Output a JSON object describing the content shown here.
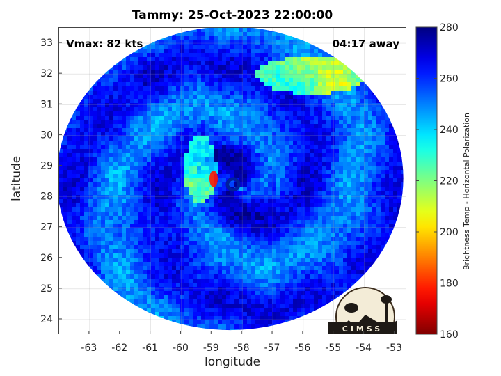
{
  "chart_data": {
    "type": "heatmap",
    "title": "Tammy: 25-Oct-2023 22:00:00",
    "xlabel": "longitude",
    "ylabel": "latitude",
    "xlim": [
      -64,
      -52.6
    ],
    "ylim": [
      23.5,
      33.5
    ],
    "xticks": [
      -63,
      -62,
      -61,
      -60,
      -59,
      -58,
      -57,
      -56,
      -55,
      -54,
      -53
    ],
    "yticks": [
      24,
      25,
      26,
      27,
      28,
      29,
      30,
      31,
      32,
      33
    ],
    "grid": true,
    "annotations": {
      "vmax": "Vmax: 82 kts",
      "away": "04:17 away"
    },
    "colorbar": {
      "label": "Brightness Temp - Horizontal Polarization",
      "range": [
        160,
        280
      ],
      "ticks": [
        160,
        180,
        200,
        220,
        240,
        260,
        280
      ],
      "colormap": "jet"
    },
    "storm_center": {
      "lon": -58.3,
      "lat": 28.4
    },
    "swath_center": {
      "lon": -58.4,
      "lat": 28.6
    },
    "logo": "CIMSS"
  }
}
